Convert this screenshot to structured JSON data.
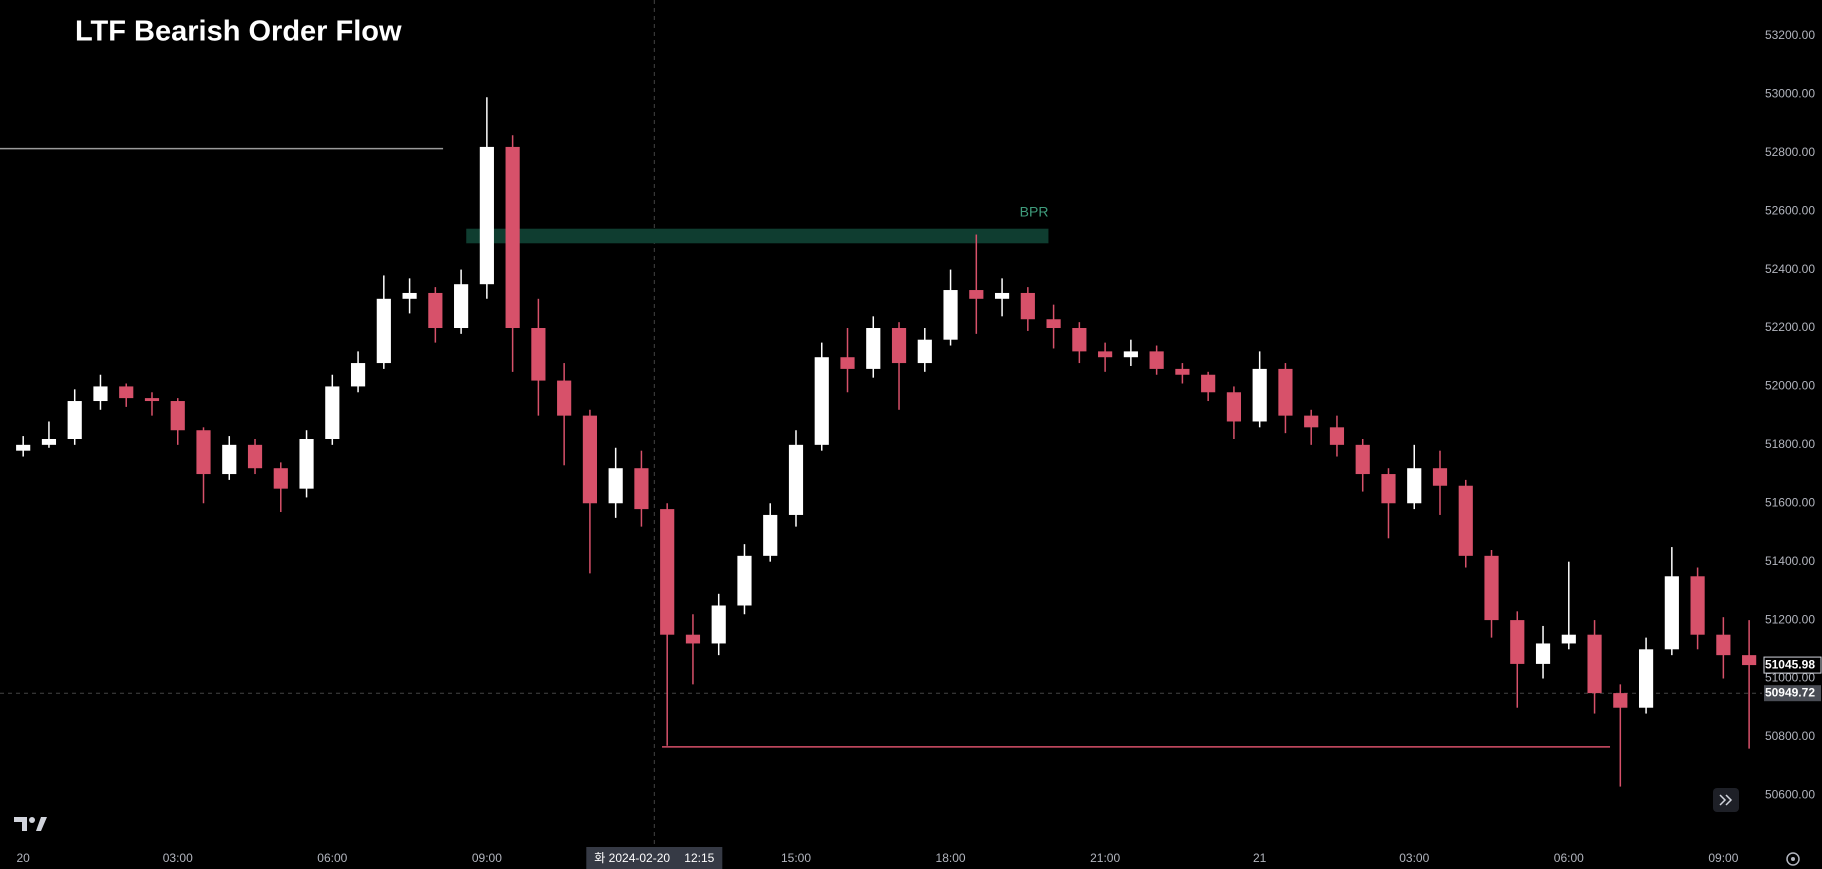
{
  "chart_data": {
    "type": "candlestick",
    "title": "LTF Bearish Order Flow",
    "up_color": "#ffffff",
    "down_color": "#d7516a",
    "x": [
      0,
      0.5,
      1,
      1.5,
      2,
      2.5,
      3,
      3.5,
      4,
      4.5,
      5,
      5.5,
      6,
      6.5,
      7,
      7.5,
      8,
      8.5,
      9,
      9.5,
      10,
      10.5,
      11,
      11.5,
      12,
      12.5,
      13,
      13.5,
      14,
      14.5,
      15,
      15.5,
      16,
      16.5,
      17,
      17.5,
      18,
      18.5,
      19,
      19.5,
      20,
      20.5,
      21,
      21.5,
      22,
      22.5,
      23,
      23.5,
      24,
      24.5,
      25,
      25.5,
      26,
      26.5,
      27,
      27.5,
      28,
      28.5,
      29,
      29.5,
      30,
      30.5,
      31,
      31.5,
      32,
      32.5,
      33,
      33.5
    ],
    "open": [
      51780,
      51800,
      51820,
      51950,
      52000,
      51960,
      51950,
      51850,
      51700,
      51800,
      51720,
      51650,
      51820,
      52000,
      52080,
      52300,
      52320,
      52200,
      52350,
      52820,
      52200,
      52020,
      51900,
      51600,
      51720,
      51580,
      51150,
      51120,
      51250,
      51420,
      51560,
      51800,
      52100,
      52060,
      52200,
      52080,
      52160,
      52330,
      52300,
      52320,
      52230,
      52200,
      52120,
      52100,
      52120,
      52060,
      52040,
      51980,
      51880,
      52060,
      51900,
      51860,
      51800,
      51700,
      51600,
      51720,
      51660,
      51420,
      51200,
      51050,
      51120,
      51150,
      50950,
      50900,
      51100,
      51350,
      51150,
      51080
    ],
    "high": [
      51830,
      51880,
      51990,
      52040,
      52010,
      51980,
      51960,
      51860,
      51830,
      51820,
      51740,
      51850,
      52040,
      52120,
      52380,
      52370,
      52340,
      52400,
      52990,
      52860,
      52300,
      52080,
      51920,
      51790,
      51780,
      51600,
      51220,
      51290,
      51460,
      51600,
      51850,
      52150,
      52200,
      52240,
      52220,
      52200,
      52400,
      52520,
      52370,
      52340,
      52280,
      52220,
      52150,
      52160,
      52140,
      52080,
      52050,
      52000,
      52120,
      52080,
      51920,
      51900,
      51820,
      51720,
      51800,
      51780,
      51680,
      51440,
      51230,
      51180,
      51400,
      51200,
      50980,
      51140,
      51450,
      51380,
      51210,
      51200
    ],
    "low": [
      51760,
      51790,
      51800,
      51920,
      51930,
      51900,
      51800,
      51600,
      51680,
      51700,
      51570,
      51620,
      51800,
      51980,
      52060,
      52250,
      52150,
      52180,
      52300,
      52050,
      51900,
      51730,
      51360,
      51550,
      51520,
      50770,
      50980,
      51080,
      51220,
      51400,
      51520,
      51780,
      51980,
      52030,
      51920,
      52050,
      52140,
      52180,
      52240,
      52190,
      52130,
      52080,
      52050,
      52070,
      52040,
      52010,
      51950,
      51820,
      51860,
      51840,
      51800,
      51760,
      51640,
      51480,
      51580,
      51560,
      51380,
      51140,
      50900,
      51000,
      51100,
      50880,
      50630,
      50880,
      51080,
      51100,
      51000,
      50760
    ],
    "close": [
      51800,
      51820,
      51950,
      52000,
      51960,
      51950,
      51850,
      51700,
      51800,
      51720,
      51650,
      51820,
      52000,
      52080,
      52300,
      52320,
      52200,
      52350,
      52820,
      52200,
      52020,
      51900,
      51600,
      51720,
      51580,
      51150,
      51120,
      51250,
      51420,
      51560,
      51800,
      52100,
      52060,
      52200,
      52080,
      52160,
      52330,
      52300,
      52320,
      52230,
      52200,
      52120,
      52100,
      52120,
      52060,
      52040,
      51980,
      51880,
      52060,
      51900,
      51860,
      51800,
      51700,
      51600,
      51720,
      51660,
      51420,
      51200,
      51050,
      51120,
      51150,
      50950,
      50900,
      51100,
      51350,
      51150,
      51080,
      51046
    ],
    "xlim": [
      -0.45,
      33.75
    ],
    "xticks": [
      {
        "value": 0,
        "label": "20"
      },
      {
        "value": 3,
        "label": "03:00"
      },
      {
        "value": 6,
        "label": "06:00"
      },
      {
        "value": 9,
        "label": "09:00"
      },
      {
        "value": 15,
        "label": "15:00"
      },
      {
        "value": 18,
        "label": "18:00"
      },
      {
        "value": 21,
        "label": "21:00"
      },
      {
        "value": 24,
        "label": "21"
      },
      {
        "value": 27,
        "label": "03:00"
      },
      {
        "value": 30,
        "label": "06:00"
      },
      {
        "value": 33,
        "label": "09:00"
      }
    ],
    "ylim": [
      50430,
      53323
    ],
    "yticks": [
      {
        "value": 50600,
        "label": "50600.00"
      },
      {
        "value": 50800,
        "label": "50800.00"
      },
      {
        "value": 51000,
        "label": "51000.00"
      },
      {
        "value": 51200,
        "label": "51200.00"
      },
      {
        "value": 51400,
        "label": "51400.00"
      },
      {
        "value": 51600,
        "label": "51600.00"
      },
      {
        "value": 51800,
        "label": "51800.00"
      },
      {
        "value": 52000,
        "label": "52000.00"
      },
      {
        "value": 52200,
        "label": "52200.00"
      },
      {
        "value": 52400,
        "label": "52400.00"
      },
      {
        "value": 52600,
        "label": "52600.00"
      },
      {
        "value": 52800,
        "label": "52800.00"
      },
      {
        "value": 53000,
        "label": "53000.00"
      },
      {
        "value": 53200,
        "label": "53200.00"
      }
    ],
    "zones": [
      {
        "label": "BPR",
        "x": [
          8.6,
          19.9
        ],
        "y": [
          52490,
          52540
        ],
        "color": "#0f3d30",
        "label_color": "#3f9c7c"
      }
    ],
    "lines": [
      {
        "x": [
          -0.45,
          8.15
        ],
        "y": 52814,
        "color": "#9a9a9a"
      },
      {
        "x": [
          12.4,
          30.8
        ],
        "y": 50766,
        "color": "#d7516a"
      }
    ],
    "crosshair": {
      "x": 12.25,
      "y": 50949.72,
      "label": "화 2024-02-20",
      "time": "12:15"
    },
    "price_markers": [
      {
        "value": 51045.98,
        "label": "51045.98",
        "bg": "#000000",
        "fg": "#ffffff"
      },
      {
        "value": 50949.72,
        "label": "50949.72",
        "bg": "#4a4d55",
        "fg": "#ffffff"
      }
    ]
  }
}
